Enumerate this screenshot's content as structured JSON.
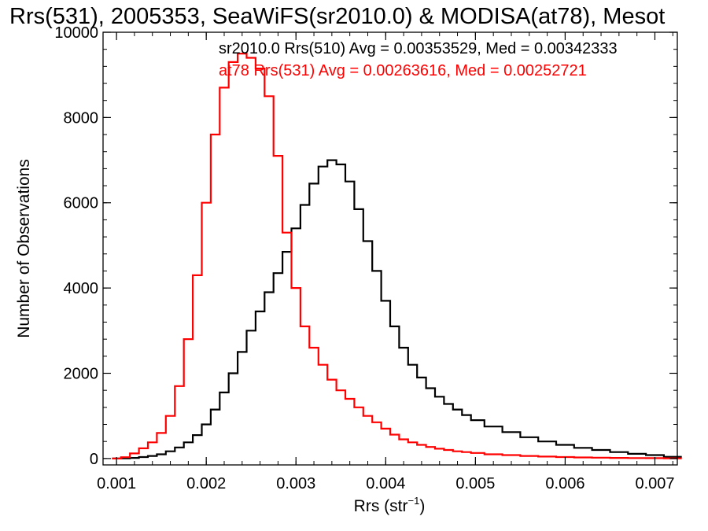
{
  "chart_data": {
    "type": "line",
    "title": "Rrs(531), 2005353, SeaWiFS(sr2010.0) & MODISA(at78), Mesot",
    "xlabel": "Rrs (str",
    "xlabel_sup": "−1",
    "xlabel_close": ")",
    "ylabel": "Number of Observations",
    "xlim": [
      0.00085,
      0.00725
    ],
    "ylim": [
      -150,
      10000
    ],
    "xticks": [
      0.001,
      0.002,
      0.003,
      0.004,
      0.005,
      0.006,
      0.007
    ],
    "xtick_labels": [
      "0.001",
      "0.002",
      "0.003",
      "0.004",
      "0.005",
      "0.006",
      "0.007"
    ],
    "yticks": [
      0,
      2000,
      4000,
      6000,
      8000,
      10000
    ],
    "ytick_labels": [
      "0",
      "2000",
      "4000",
      "6000",
      "8000",
      "10000"
    ],
    "grid": false,
    "series": [
      {
        "name": "sr2010.0 Rrs(510) Avg = 0.00353529, Med = 0.00342333",
        "color": "#000000",
        "x": [
          0.001,
          0.0011,
          0.0012,
          0.0013,
          0.0014,
          0.0015,
          0.0016,
          0.0017,
          0.0018,
          0.0019,
          0.002,
          0.0021,
          0.0022,
          0.0023,
          0.0024,
          0.0025,
          0.0026,
          0.0027,
          0.0028,
          0.0029,
          0.003,
          0.0031,
          0.0032,
          0.0033,
          0.0034,
          0.0035,
          0.0036,
          0.0037,
          0.0038,
          0.0039,
          0.004,
          0.0041,
          0.0042,
          0.0043,
          0.0044,
          0.0045,
          0.0046,
          0.0047,
          0.0048,
          0.0049,
          0.005,
          0.0052,
          0.0054,
          0.0056,
          0.0058,
          0.006,
          0.0062,
          0.0064,
          0.0066,
          0.0068,
          0.007,
          0.0072
        ],
        "y": [
          0,
          5,
          15,
          35,
          60,
          100,
          170,
          260,
          380,
          550,
          800,
          1150,
          1550,
          2000,
          2500,
          3000,
          3450,
          3900,
          4350,
          4850,
          5400,
          5950,
          6450,
          6850,
          7000,
          6900,
          6500,
          5850,
          5100,
          4400,
          3700,
          3100,
          2600,
          2200,
          1900,
          1650,
          1450,
          1280,
          1150,
          1020,
          900,
          750,
          620,
          500,
          400,
          320,
          250,
          200,
          150,
          110,
          80,
          40
        ]
      },
      {
        "name": "at78 Rrs(531) Avg = 0.00263616, Med = 0.00252721",
        "color": "#ff0000",
        "x": [
          0.001,
          0.0011,
          0.0012,
          0.0013,
          0.0014,
          0.0015,
          0.0016,
          0.0017,
          0.0018,
          0.0019,
          0.002,
          0.0021,
          0.0022,
          0.0023,
          0.0024,
          0.0025,
          0.0026,
          0.0027,
          0.0028,
          0.0029,
          0.003,
          0.0031,
          0.0032,
          0.0033,
          0.0034,
          0.0035,
          0.0036,
          0.0037,
          0.0038,
          0.0039,
          0.004,
          0.0041,
          0.0042,
          0.0043,
          0.0044,
          0.0045,
          0.0046,
          0.0047,
          0.0048,
          0.0049,
          0.005,
          0.0052,
          0.0054,
          0.0056,
          0.0058,
          0.006,
          0.0062,
          0.0064,
          0.0066,
          0.0068,
          0.007,
          0.0072
        ],
        "y": [
          0,
          30,
          120,
          240,
          380,
          600,
          1000,
          1700,
          2800,
          4300,
          6000,
          7600,
          8700,
          9300,
          9500,
          9400,
          9150,
          8500,
          7100,
          5300,
          4000,
          3100,
          2600,
          2200,
          1850,
          1600,
          1400,
          1200,
          1000,
          850,
          700,
          560,
          450,
          380,
          320,
          270,
          230,
          200,
          170,
          150,
          130,
          100,
          80,
          60,
          45,
          35,
          25,
          20,
          15,
          10,
          8,
          5
        ]
      }
    ]
  }
}
